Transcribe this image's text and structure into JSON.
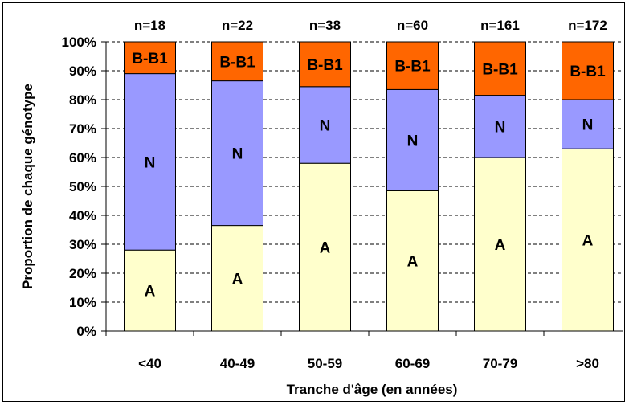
{
  "chart_data": {
    "type": "bar",
    "stacked": true,
    "normalized": true,
    "categories": [
      "<40",
      "40-49",
      "50-59",
      "60-69",
      "70-79",
      ">80"
    ],
    "sample_sizes": [
      "n=18",
      "n=22",
      "n=38",
      "n=60",
      "n=161",
      "n=172"
    ],
    "series": [
      {
        "name": "A",
        "color": "#FFFFCC",
        "values": [
          28,
          36.5,
          58,
          48.5,
          60,
          63
        ]
      },
      {
        "name": "N",
        "color": "#9999FF",
        "values": [
          61,
          50,
          26.5,
          35,
          21.5,
          17
        ]
      },
      {
        "name": "B-B1",
        "color": "#FF6600",
        "values": [
          11,
          13.5,
          15.5,
          16.5,
          18.5,
          20
        ]
      }
    ],
    "xlabel": "Tranche d'âge (en années)",
    "ylabel": "Proportion de chaque génotype",
    "ylim": [
      0,
      100
    ],
    "yticks": [
      "0%",
      "10%",
      "20%",
      "30%",
      "40%",
      "50%",
      "60%",
      "70%",
      "80%",
      "90%",
      "100%"
    ],
    "grid": "horizontal dashed",
    "legend": "none"
  }
}
